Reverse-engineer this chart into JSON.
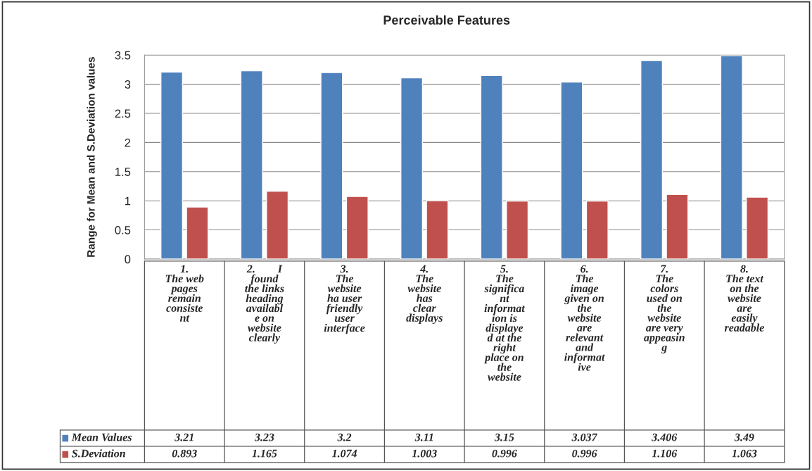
{
  "chart_data": {
    "type": "bar",
    "title": "Perceivable Features",
    "ylabel": "Range for Mean and S.Deviation values",
    "categories": [
      "1.\nThe web\npages\nremain\nconsiste\nnt",
      "2.        I\nfound\nthe links\nheading\navailabl\ne on\nwebsite\nclearly",
      "3.\nThe\nwebsite\nha user\nfriendly\nuser\ninterface",
      "4.\nThe\nwebsite\nhas\nclear\ndisplays",
      "5.\nThe\nsignifica\nnt\ninformat\nion is\ndisplaye\nd at the\nright\nplace on\nthe\nwebsite",
      "6.\nThe\nimage\ngiven on\nthe\nwebsite\nare\nrelevant\nand\ninformat\nive",
      "7.\nThe\ncolors\nused on\nthe\nwebsite\nare very\nappeasin\ng",
      "8.\nThe text\non the\nwebsite\nare\neasily\nreadable"
    ],
    "series": [
      {
        "name": "Mean Values",
        "color": "#4f81bd",
        "values": [
          3.21,
          3.23,
          3.2,
          3.11,
          3.15,
          3.037,
          3.406,
          3.49
        ]
      },
      {
        "name": "S.Deviation",
        "color": "#c0504d",
        "values": [
          0.893,
          1.165,
          1.074,
          1.003,
          0.996,
          0.996,
          1.106,
          1.063
        ]
      }
    ],
    "ylim": [
      0,
      3.5
    ],
    "yticks": [
      0,
      0.5,
      1,
      1.5,
      2,
      2.5,
      3,
      3.5
    ],
    "grid": "y",
    "data_labels": true,
    "legend": "bottom"
  }
}
